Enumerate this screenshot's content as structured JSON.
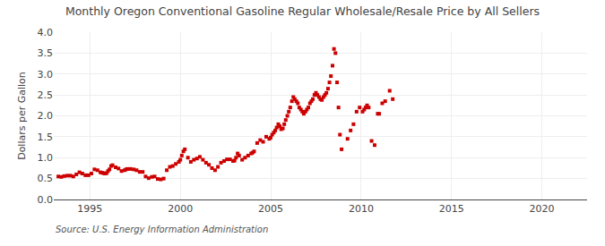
{
  "chart_data": {
    "type": "scatter",
    "title": "Monthly Oregon Conventional Gasoline Regular Wholesale/Resale Price by All Sellers",
    "ylabel": "Dollars per Gallon",
    "source": "Source: U.S. Energy Information Administration",
    "color": "#CC0000",
    "marker": "square",
    "grid": true,
    "xlim": [
      1993.0,
      2022.5
    ],
    "ylim": [
      0.0,
      4.0
    ],
    "xticks": [
      1995,
      2000,
      2005,
      2010,
      2015,
      2020
    ],
    "yticks": [
      {
        "value": 0.0,
        "label": "0.0"
      },
      0.5,
      {
        "value": 1.0,
        "label": "1.0"
      },
      1.5,
      {
        "value": 2.0,
        "label": "2.0"
      },
      2.5,
      {
        "value": 3.0,
        "label": "3.0"
      },
      3.5,
      {
        "value": 4.0,
        "label": "4.0"
      }
    ],
    "x": [
      1993.25,
      1993.42,
      1993.58,
      1993.75,
      1993.92,
      1994.08,
      1994.25,
      1994.42,
      1994.58,
      1994.75,
      1994.92,
      1995.08,
      1995.25,
      1995.42,
      1995.58,
      1995.67,
      1995.75,
      1995.83,
      1995.92,
      1996.0,
      1996.08,
      1996.17,
      1996.25,
      1996.42,
      1996.58,
      1996.75,
      1996.92,
      1997.0,
      1997.08,
      1997.25,
      1997.42,
      1997.58,
      1997.75,
      1997.92,
      1998.08,
      1998.25,
      1998.42,
      1998.58,
      1998.75,
      1998.92,
      1999.08,
      1999.25,
      1999.42,
      1999.58,
      1999.75,
      1999.92,
      2000.0,
      2000.08,
      2000.17,
      2000.25,
      2000.42,
      2000.58,
      2000.75,
      2000.92,
      2001.08,
      2001.25,
      2001.42,
      2001.58,
      2001.75,
      2001.92,
      2002.08,
      2002.25,
      2002.42,
      2002.58,
      2002.75,
      2002.92,
      2003.0,
      2003.08,
      2003.17,
      2003.25,
      2003.42,
      2003.58,
      2003.75,
      2003.92,
      2004.0,
      2004.08,
      2004.25,
      2004.42,
      2004.58,
      2004.75,
      2004.92,
      2005.0,
      2005.08,
      2005.17,
      2005.25,
      2005.33,
      2005.42,
      2005.5,
      2005.58,
      2005.67,
      2005.75,
      2005.83,
      2005.92,
      2006.0,
      2006.08,
      2006.17,
      2006.25,
      2006.33,
      2006.42,
      2006.5,
      2006.58,
      2006.67,
      2006.75,
      2006.83,
      2006.92,
      2007.0,
      2007.08,
      2007.17,
      2007.25,
      2007.33,
      2007.42,
      2007.5,
      2007.58,
      2007.67,
      2007.75,
      2007.83,
      2007.92,
      2008.0,
      2008.08,
      2008.17,
      2008.25,
      2008.33,
      2008.42,
      2008.5,
      2008.58,
      2008.67,
      2008.75,
      2008.83,
      2008.92,
      2009.25,
      2009.42,
      2009.58,
      2009.75,
      2009.92,
      2010.08,
      2010.17,
      2010.25,
      2010.33,
      2010.42,
      2010.58,
      2010.75,
      2010.92,
      2011.0,
      2011.17,
      2011.33,
      2011.58,
      2011.75
    ],
    "values": [
      0.55,
      0.54,
      0.56,
      0.57,
      0.57,
      0.55,
      0.6,
      0.65,
      0.62,
      0.58,
      0.58,
      0.62,
      0.72,
      0.7,
      0.65,
      0.64,
      0.63,
      0.62,
      0.63,
      0.68,
      0.72,
      0.8,
      0.82,
      0.77,
      0.74,
      0.68,
      0.7,
      0.72,
      0.73,
      0.73,
      0.72,
      0.7,
      0.66,
      0.66,
      0.55,
      0.51,
      0.54,
      0.55,
      0.49,
      0.48,
      0.5,
      0.7,
      0.78,
      0.8,
      0.85,
      0.9,
      0.95,
      1.05,
      1.15,
      1.2,
      1.0,
      0.9,
      0.95,
      0.98,
      1.02,
      0.95,
      0.88,
      0.83,
      0.75,
      0.7,
      0.78,
      0.88,
      0.92,
      0.96,
      0.96,
      0.92,
      0.93,
      1.0,
      1.1,
      1.05,
      0.95,
      1.0,
      1.05,
      1.1,
      1.12,
      1.15,
      1.35,
      1.42,
      1.38,
      1.5,
      1.45,
      1.48,
      1.55,
      1.6,
      1.65,
      1.72,
      1.8,
      1.75,
      1.68,
      1.7,
      1.8,
      1.9,
      2.0,
      2.1,
      2.2,
      2.35,
      2.45,
      2.4,
      2.35,
      2.3,
      2.2,
      2.15,
      2.1,
      2.05,
      2.1,
      2.15,
      2.2,
      2.3,
      2.35,
      2.4,
      2.5,
      2.55,
      2.5,
      2.45,
      2.4,
      2.38,
      2.45,
      2.5,
      2.55,
      2.65,
      2.8,
      2.95,
      3.2,
      3.6,
      3.5,
      2.8,
      2.2,
      1.55,
      1.2,
      1.45,
      1.65,
      1.8,
      2.1,
      2.2,
      2.1,
      2.15,
      2.2,
      2.25,
      2.2,
      1.4,
      1.3,
      2.05,
      2.05,
      2.3,
      2.35,
      2.6,
      2.4
    ]
  }
}
